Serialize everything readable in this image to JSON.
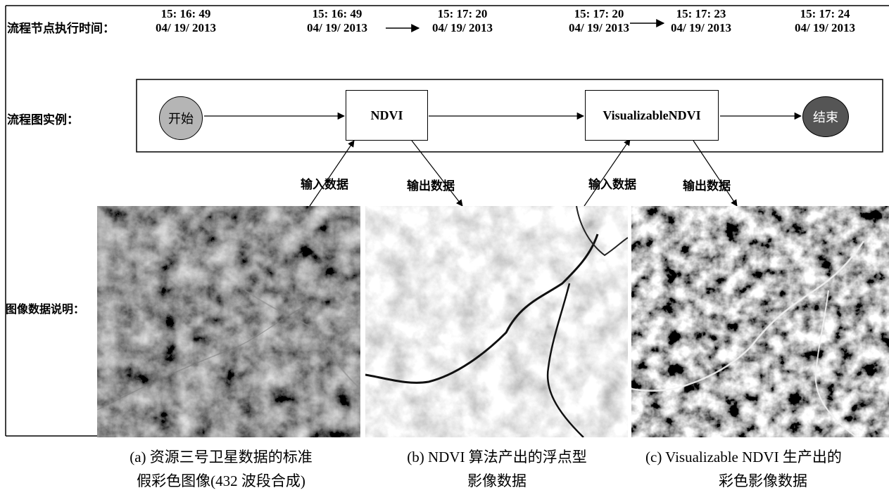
{
  "labels": {
    "timeline": "流程节点执行时间：",
    "flowchart": "流程图实例：",
    "images": "图像数据说明："
  },
  "timestamps": [
    {
      "time": "15: 16: 49",
      "date": "04/ 19/ 2013"
    },
    {
      "time": "15: 16: 49",
      "date": "04/ 19/ 2013"
    },
    {
      "time": "15: 17: 20",
      "date": "04/ 19/ 2013"
    },
    {
      "time": "15: 17: 20",
      "date": "04/ 19/ 2013"
    },
    {
      "time": "15: 17: 23",
      "date": "04/ 19/ 2013"
    },
    {
      "time": "15: 17: 24",
      "date": "04/ 19/ 2013"
    }
  ],
  "nodes": {
    "start": "开始",
    "ndvi": "NDVI",
    "visualizable": "VisualizableNDVI",
    "end": "结束"
  },
  "io": {
    "input1": "输入数据",
    "output1": "输出数据",
    "input2": "输入数据",
    "output2": "输出数据"
  },
  "captions": [
    {
      "line1": "(a)  资源三号卫星数据的标准",
      "line2": "假彩色图像(432 波段合成)"
    },
    {
      "line1": "(b) NDVI 算法产出的浮点型",
      "line2": "影像数据"
    },
    {
      "line1": "(c) Visualizable NDVI 生产出的",
      "line2": "彩色影像数据"
    }
  ],
  "colors": {
    "start_fill": "#b5b5b5",
    "end_fill": "#555555",
    "stroke": "#000000"
  }
}
